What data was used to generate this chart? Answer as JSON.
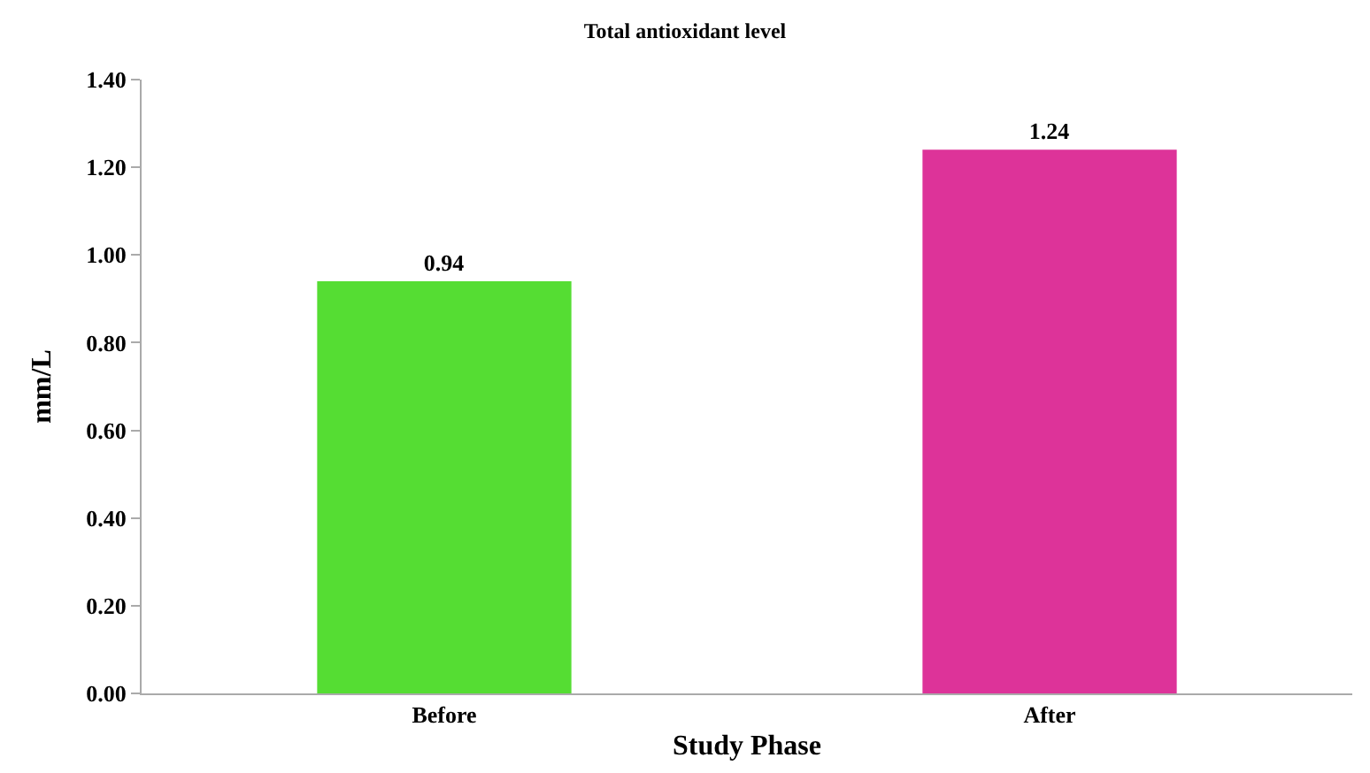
{
  "chart_data": {
    "type": "bar",
    "title": "Total antioxidant level",
    "xlabel": "Study Phase",
    "ylabel": "mm/L",
    "categories": [
      "Before",
      "After"
    ],
    "values": [
      0.94,
      1.24
    ],
    "colors": [
      "#55dd33",
      "#dd3399"
    ],
    "ylim": [
      0,
      1.4
    ],
    "yticks": [
      {
        "value": 0,
        "label": "0.00"
      },
      {
        "value": 0.2,
        "label": "0.20"
      },
      {
        "value": 0.4,
        "label": "0.40"
      },
      {
        "value": 0.6,
        "label": "0.60"
      },
      {
        "value": 0.8,
        "label": "0.80"
      },
      {
        "value": 1.0,
        "label": "1.00"
      },
      {
        "value": 1.2,
        "label": "1.20"
      },
      {
        "value": 1.4,
        "label": "1.40"
      }
    ],
    "data_labels": true
  }
}
